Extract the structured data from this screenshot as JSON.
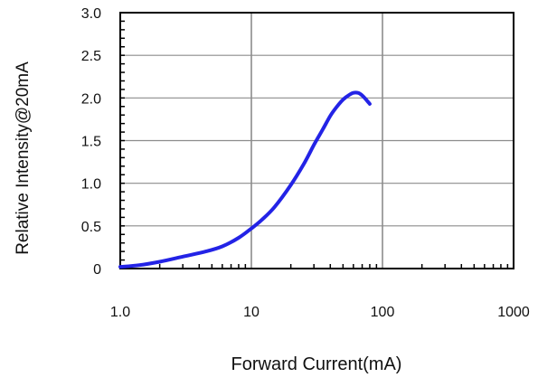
{
  "chart_data": {
    "type": "line",
    "x_scale": "log",
    "xlabel": "Forward Current(mA)",
    "ylabel": "Relative Intensity@20mA",
    "xlim": [
      1,
      1000
    ],
    "ylim": [
      0,
      3.0
    ],
    "x_ticks": [
      {
        "value": 1,
        "label": "1.0"
      },
      {
        "value": 10,
        "label": "10"
      },
      {
        "value": 100,
        "label": "100"
      },
      {
        "value": 1000,
        "label": "1000"
      }
    ],
    "y_ticks": [
      {
        "value": 0,
        "label": "0"
      },
      {
        "value": 0.5,
        "label": "0.5"
      },
      {
        "value": 1.0,
        "label": "1.0"
      },
      {
        "value": 1.5,
        "label": "1.5"
      },
      {
        "value": 2.0,
        "label": "2.0"
      },
      {
        "value": 2.5,
        "label": "2.5"
      },
      {
        "value": 3.0,
        "label": "3.0"
      }
    ],
    "grid": true,
    "line_color": "#2323e6",
    "series": [
      {
        "x": [
          1.0,
          1.4,
          2.0,
          3.0,
          4.5,
          6.0,
          8.0,
          10.0,
          12.0,
          15.0,
          20.0,
          25.0,
          30.0,
          35.0,
          40.0,
          45.0,
          50.0,
          55.0,
          60.0,
          65.0,
          70.0,
          75.0,
          80.0
        ],
        "y": [
          0.02,
          0.04,
          0.08,
          0.14,
          0.2,
          0.26,
          0.36,
          0.47,
          0.57,
          0.72,
          0.98,
          1.22,
          1.45,
          1.63,
          1.79,
          1.9,
          1.98,
          2.03,
          2.06,
          2.06,
          2.03,
          1.98,
          1.93
        ]
      }
    ]
  }
}
